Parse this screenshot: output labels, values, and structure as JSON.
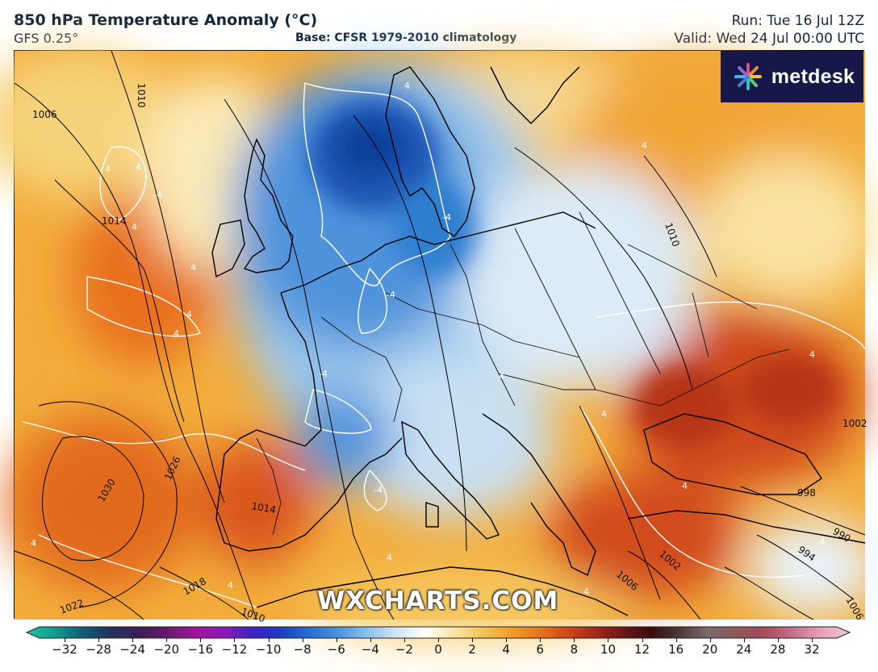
{
  "header": {
    "title": "850 hPa Temperature Anomaly (°C)",
    "model": "GFS 0.25°",
    "base": "Base: CFSR 1979-2010 climatology",
    "run": "Run: Tue 16 Jul 12Z",
    "valid": "Valid: Wed 24 Jul 00:00 UTC"
  },
  "logo": {
    "text": "metdesk",
    "icon": "metdesk-star-icon"
  },
  "watermark": "WXCHARTS.COM",
  "map": {
    "isobar_labels": [
      "1010",
      "1006",
      "1014",
      "1010",
      "1026",
      "1030",
      "1014",
      "1018",
      "1022",
      "1010",
      "1006",
      "1002",
      "998",
      "990",
      "994",
      "1006",
      "1002"
    ],
    "anomaly_labels": [
      "4",
      "4",
      "4",
      "4",
      "4",
      "4",
      "4",
      "4",
      "-4",
      "-4",
      "-4",
      "-4",
      "4",
      "4",
      "4",
      "4",
      "4",
      "4",
      "4",
      "4",
      "4",
      "4"
    ],
    "colors": {
      "cold_deep": "#0a3f9a",
      "cold": "#2f7fd0",
      "cool": "#8cc0ea",
      "neutral": "#e8f2fa",
      "warm_light": "#f6d37a",
      "warm": "#f0a030",
      "hot": "#e26a1a",
      "very_hot": "#c8401a"
    }
  },
  "colorbar": {
    "ticks": [
      "−32",
      "−28",
      "−24",
      "−20",
      "−16",
      "−12",
      "−10",
      "−8",
      "−6",
      "−4",
      "−2",
      "0",
      "2",
      "4",
      "6",
      "8",
      "10",
      "12",
      "16",
      "20",
      "24",
      "28",
      "32"
    ],
    "stops": [
      "#1fc7a0",
      "#139a8e",
      "#0f5c78",
      "#24305a",
      "#3a1f55",
      "#6a1a70",
      "#a0169a",
      "#8c18b8",
      "#3a22c2",
      "#1c3fbf",
      "#2a6fd0",
      "#4d94dd",
      "#8cc0ea",
      "#cfe3f4",
      "#ffffff",
      "#f9e7a8",
      "#f4c65a",
      "#f0a030",
      "#e67820",
      "#d04a18",
      "#a8281c",
      "#6e1616",
      "#3a0c0c",
      "#4a3a3a",
      "#7a6a6a",
      "#8c5a5a",
      "#a84a5a",
      "#c8708a",
      "#e6a0b8",
      "#f0c8d8"
    ]
  }
}
